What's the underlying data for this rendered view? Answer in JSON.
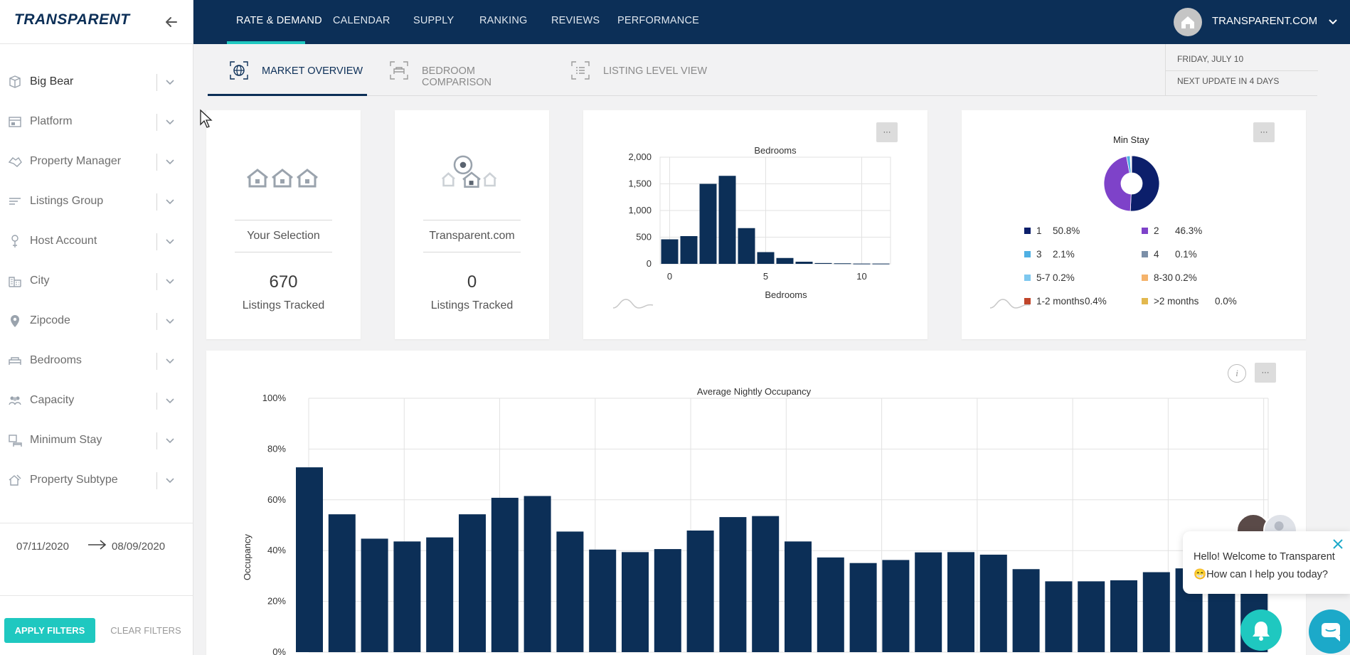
{
  "app": {
    "logo": "TRANSPARENT"
  },
  "sidebar": {
    "filters": [
      {
        "label": "Big Bear",
        "icon": "region-icon",
        "active": true
      },
      {
        "label": "Platform",
        "icon": "platform-icon"
      },
      {
        "label": "Property Manager",
        "icon": "handshake-icon"
      },
      {
        "label": "Listings Group",
        "icon": "list-filter-icon"
      },
      {
        "label": "Host Account",
        "icon": "host-icon"
      },
      {
        "label": "City",
        "icon": "city-icon"
      },
      {
        "label": "Zipcode",
        "icon": "location-pin-icon"
      },
      {
        "label": "Bedrooms",
        "icon": "bed-icon"
      },
      {
        "label": "Capacity",
        "icon": "people-icon"
      },
      {
        "label": "Minimum Stay",
        "icon": "calendar-bed-icon"
      },
      {
        "label": "Property Subtype",
        "icon": "property-subtype-icon"
      }
    ],
    "date_start": "07/11/2020",
    "date_end": "08/09/2020",
    "apply_label": "APPLY FILTERS",
    "clear_label": "CLEAR FILTERS"
  },
  "topnav": {
    "items": [
      "RATE & DEMAND",
      "CALENDAR",
      "SUPPLY",
      "RANKING",
      "REVIEWS",
      "PERFORMANCE"
    ],
    "active_index": 0,
    "account": "TRANSPARENT.COM"
  },
  "subtabs": {
    "items": [
      {
        "label": "MARKET OVERVIEW",
        "icon": "globe-icon"
      },
      {
        "label": "BEDROOM COMPARISON",
        "icon": "bed-compare-icon"
      },
      {
        "label": "LISTING LEVEL VIEW",
        "icon": "list-view-icon"
      }
    ],
    "active_index": 0,
    "date_line1": "FRIDAY, JULY 10",
    "date_line2_prefix": "NEXT UPDATE",
    "date_line2_highlight": "IN 4 DAYS"
  },
  "stats": [
    {
      "label": "Your Selection",
      "value": "670",
      "sub": "Listings Tracked",
      "icon": "houses-icon"
    },
    {
      "label": "Transparent.com",
      "value": "0",
      "sub": "Listings Tracked",
      "icon": "houses-pin-icon"
    }
  ],
  "more_button": "···",
  "chart_data": [
    {
      "type": "bar",
      "title": "Bedrooms",
      "xlabel": "Bedrooms",
      "ylabel": "",
      "x": [
        0,
        1,
        2,
        3,
        4,
        5,
        6,
        7,
        8,
        9,
        10,
        11
      ],
      "values": [
        460,
        520,
        1500,
        1650,
        670,
        220,
        110,
        40,
        15,
        10,
        5,
        5
      ],
      "xticks": [
        "0",
        "5",
        "10"
      ],
      "yticks": [
        "0",
        "500",
        "1,000",
        "1,500",
        "2,000"
      ],
      "ylim": [
        0,
        2000
      ],
      "color": "#0c2f57",
      "grid": true
    },
    {
      "type": "pie",
      "title": "Min Stay",
      "slices": [
        {
          "label": "1",
          "pct": 50.8,
          "display": "50.8%",
          "color": "#0c1f6b"
        },
        {
          "label": "2",
          "pct": 46.3,
          "display": "46.3%",
          "color": "#7e42c9"
        },
        {
          "label": "3",
          "pct": 2.1,
          "display": "2.1%",
          "color": "#4fb0e3"
        },
        {
          "label": "4",
          "pct": 0.1,
          "display": "0.1%",
          "color": "#7b8fa8"
        },
        {
          "label": "5-7",
          "pct": 0.2,
          "display": "0.2%",
          "color": "#7ec8ef"
        },
        {
          "label": "8-30",
          "pct": 0.2,
          "display": "0.2%",
          "color": "#f5b36b"
        },
        {
          "label": "1-2 months",
          "pct": 0.4,
          "display": "0.4%",
          "color": "#c0452a"
        },
        {
          "label": ">2 months",
          "pct": 0.0,
          "display": "0.0%",
          "color": "#e2b84e"
        }
      ]
    },
    {
      "type": "bar",
      "title": "Average Nightly Occupancy",
      "xlabel": "",
      "ylabel": "Occupancy",
      "values": [
        72.8,
        54.3,
        44.7,
        43.6,
        45.2,
        54.3,
        60.8,
        61.5,
        47.5,
        40.4,
        39.4,
        40.6,
        47.9,
        53.2,
        53.6,
        43.6,
        37.3,
        35.1,
        36.3,
        39.3,
        39.4,
        38.4,
        32.7,
        27.9,
        27.9,
        28.3,
        31.5,
        33.0,
        31.0,
        30.5
      ],
      "yticks": [
        "0%",
        "20%",
        "40%",
        "60%",
        "80%",
        "100%"
      ],
      "ylim": [
        0,
        100
      ],
      "color": "#0c2f57",
      "grid": true
    }
  ],
  "chat": {
    "line1": "Hello! Welcome to Transparent",
    "emoji": "😁",
    "line2": "How can I help you today?"
  }
}
